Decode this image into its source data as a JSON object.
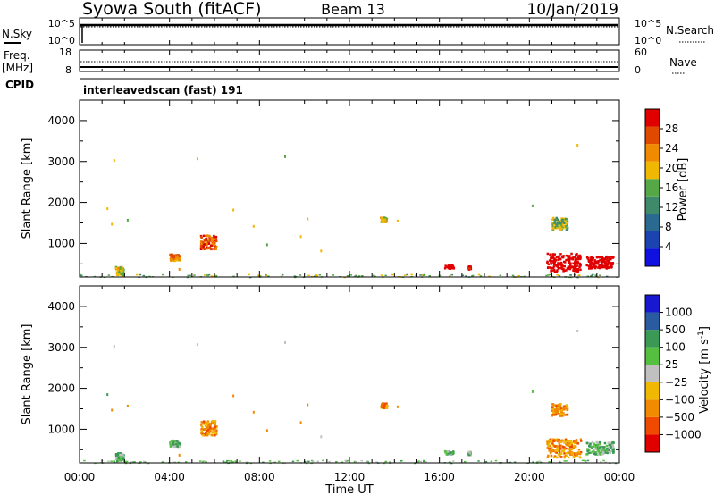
{
  "header": {
    "station": "Syowa South (fitACF)",
    "beam": "Beam 13",
    "date": "10/Jan/2019"
  },
  "top_panels": {
    "nsky_label": "N.Sky",
    "nsky_ticks": [
      "10^5",
      "10^0"
    ],
    "nsearch_label": "N.Search",
    "nsearch_ticks": [
      "10^5",
      "10^0"
    ],
    "freq_label": "Freq.",
    "freq_unit": "[MHz]",
    "freq_ticks": [
      "18",
      "8"
    ],
    "nave_label": "Nave",
    "nave_ticks": [
      "60",
      "0"
    ],
    "cpid_label": "CPID",
    "cpid_text": "interleavedscan (fast) 191"
  },
  "colors": {
    "power": [
      "#1010e0",
      "#1c44b0",
      "#2a6a90",
      "#3f8a6a",
      "#55a845",
      "#f0b800",
      "#f08a00",
      "#e04a00",
      "#e00000"
    ],
    "velocity": [
      "#e00000",
      "#f04a00",
      "#f08a00",
      "#f0b800",
      "#c0c0c0",
      "#55c040",
      "#3a9a55",
      "#2a5aa0",
      "#1818d0"
    ]
  },
  "chart_data": [
    {
      "type": "heatmap",
      "name": "power",
      "ylabel": "Slant Range [km]",
      "x_ticks": [
        "00:00",
        "04:00",
        "08:00",
        "12:00",
        "16:00",
        "20:00",
        "00:00"
      ],
      "y_ticks": [
        "1000",
        "2000",
        "3000",
        "4000"
      ],
      "xlim": [
        0,
        24
      ],
      "ylim": [
        180,
        4500
      ],
      "colorbar": {
        "label": "Power [dB]",
        "ticks": [
          "4",
          "8",
          "12",
          "16",
          "20",
          "24",
          "28"
        ],
        "range": [
          0,
          32
        ]
      },
      "clusters": [
        {
          "t": 1.75,
          "r": 350,
          "dt": 0.35,
          "dr": 200,
          "v": 5
        },
        {
          "t": 4.2,
          "r": 680,
          "dt": 0.45,
          "dr": 160,
          "v": 6
        },
        {
          "t": 5.7,
          "r": 1050,
          "dt": 0.7,
          "dr": 350,
          "v": 7
        },
        {
          "t": 13.5,
          "r": 1600,
          "dt": 0.3,
          "dr": 120,
          "v": 5
        },
        {
          "t": 16.4,
          "r": 450,
          "dt": 0.4,
          "dr": 80,
          "v": 10
        },
        {
          "t": 17.3,
          "r": 430,
          "dt": 0.1,
          "dr": 80,
          "v": 8
        },
        {
          "t": 21.5,
          "r": 560,
          "dt": 1.5,
          "dr": 450,
          "v": 17
        },
        {
          "t": 23.1,
          "r": 560,
          "dt": 1.2,
          "dr": 300,
          "v": 9
        },
        {
          "t": 21.3,
          "r": 1500,
          "dt": 0.7,
          "dr": 300,
          "v": 4
        }
      ],
      "points": [
        [
          1.5,
          3060,
          5
        ],
        [
          1.2,
          1880,
          5
        ],
        [
          1.4,
          1500,
          5
        ],
        [
          2.1,
          1600,
          4
        ],
        [
          5.2,
          3100,
          5
        ],
        [
          6.8,
          1850,
          5
        ],
        [
          7.7,
          1450,
          5
        ],
        [
          9.1,
          3150,
          4
        ],
        [
          9.8,
          1200,
          5
        ],
        [
          10.1,
          1630,
          5
        ],
        [
          10.7,
          850,
          5
        ],
        [
          8.3,
          1000,
          4
        ],
        [
          14.1,
          1580,
          5
        ],
        [
          20.1,
          1950,
          4
        ],
        [
          22.1,
          3430,
          5
        ],
        [
          4.4,
          400,
          6
        ]
      ],
      "baseline_value": 4
    },
    {
      "type": "heatmap",
      "name": "velocity",
      "ylabel": "Slant Range [km]",
      "xlabel": "Time UT",
      "x_ticks": [
        "00:00",
        "04:00",
        "08:00",
        "12:00",
        "16:00",
        "20:00",
        "00:00"
      ],
      "y_ticks": [
        "1000",
        "2000",
        "3000",
        "4000"
      ],
      "xlim": [
        0,
        24
      ],
      "ylim": [
        180,
        4500
      ],
      "colorbar": {
        "label": "Velocity [m s",
        "label_sup": "-1",
        "label_end": "]",
        "ticks": [
          "-1000",
          "-500",
          "-100",
          "-25",
          "25",
          "100",
          "500",
          "1000"
        ]
      },
      "clusters": [
        {
          "t": 1.75,
          "r": 350,
          "dt": 0.35,
          "dr": 200,
          "v": 5
        },
        {
          "t": 4.2,
          "r": 680,
          "dt": 0.45,
          "dr": 160,
          "v": 5
        },
        {
          "t": 5.7,
          "r": 1050,
          "dt": 0.7,
          "dr": 350,
          "v": 2
        },
        {
          "t": 13.5,
          "r": 1600,
          "dt": 0.3,
          "dr": 120,
          "v": 2
        },
        {
          "t": 16.4,
          "r": 450,
          "dt": 0.4,
          "dr": 80,
          "v": 5
        },
        {
          "t": 17.3,
          "r": 430,
          "dt": 0.1,
          "dr": 80,
          "v": 5
        },
        {
          "t": 21.5,
          "r": 560,
          "dt": 1.5,
          "dr": 450,
          "v": 2
        },
        {
          "t": 23.1,
          "r": 560,
          "dt": 1.2,
          "dr": 300,
          "v": 5
        },
        {
          "t": 21.3,
          "r": 1500,
          "dt": 0.7,
          "dr": 300,
          "v": 2
        }
      ],
      "points": [
        [
          1.5,
          3060,
          4
        ],
        [
          1.2,
          1880,
          6
        ],
        [
          1.4,
          1500,
          2
        ],
        [
          2.1,
          1600,
          2
        ],
        [
          5.2,
          3100,
          4
        ],
        [
          6.8,
          1850,
          2
        ],
        [
          7.7,
          1450,
          2
        ],
        [
          9.1,
          3150,
          4
        ],
        [
          9.8,
          1200,
          2
        ],
        [
          10.1,
          1630,
          2
        ],
        [
          10.7,
          850,
          4
        ],
        [
          8.3,
          1000,
          2
        ],
        [
          14.1,
          1580,
          2
        ],
        [
          20.1,
          1950,
          5
        ],
        [
          22.1,
          3430,
          4
        ],
        [
          4.4,
          400,
          2
        ]
      ],
      "baseline_value": 5
    }
  ]
}
